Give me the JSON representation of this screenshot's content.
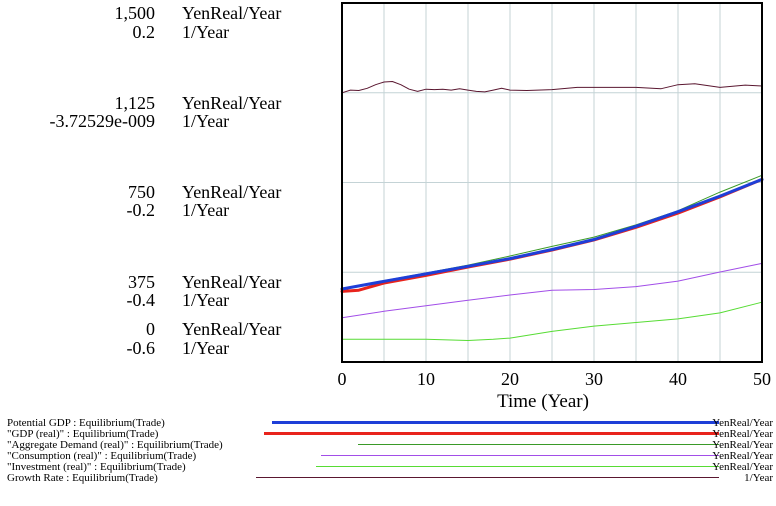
{
  "chart_data": {
    "type": "line",
    "xlabel": "Time (Year)",
    "xlim": [
      0,
      50
    ],
    "x_ticks": [
      "0",
      "10",
      "20",
      "30",
      "40",
      "50"
    ],
    "grid": true,
    "legend_position": "bottom",
    "axes": [
      {
        "unit": "YenReal/Year",
        "ylim": [
          0,
          1500
        ],
        "tick_labels": [
          "1,500",
          "1,125",
          "750",
          "375",
          "0"
        ]
      },
      {
        "unit": "1/Year",
        "ylim": [
          -0.6,
          0.2
        ],
        "tick_labels": [
          "0.2",
          "-3.72529e-009",
          "-0.2",
          "-0.4",
          "-0.6"
        ]
      }
    ],
    "series": [
      {
        "name": "Potential GDP : Equilibrium(Trade)",
        "unit": "YenReal/Year",
        "axis": 0,
        "color": "#1e3fd8",
        "width": 3,
        "x": [
          0,
          5,
          10,
          15,
          20,
          25,
          30,
          35,
          40,
          45,
          50
        ],
        "values": [
          305,
          337,
          368,
          400,
          432,
          470,
          512,
          567,
          628,
          693,
          763
        ]
      },
      {
        "name": "\"GDP (real)\" : Equilibrium(Trade)",
        "unit": "YenReal/Year",
        "axis": 0,
        "color": "#e8231c",
        "width": 3,
        "x": [
          0,
          2,
          5,
          10,
          15,
          20,
          25,
          30,
          35,
          40,
          45,
          50
        ],
        "values": [
          295,
          300,
          330,
          362,
          397,
          430,
          468,
          510,
          563,
          622,
          690,
          763
        ]
      },
      {
        "name": "\"Aggregate Demand (real)\" : Equilibrium(Trade)",
        "unit": "YenReal/Year",
        "axis": 0,
        "color": "#3a9a28",
        "width": 1,
        "x": [
          0,
          5,
          10,
          15,
          20,
          25,
          30,
          35,
          40,
          45,
          50
        ],
        "values": [
          307,
          340,
          372,
          405,
          443,
          483,
          522,
          573,
          632,
          710,
          780
        ]
      },
      {
        "name": "\"Consumption (real)\" : Equilibrium(Trade)",
        "unit": "YenReal/Year",
        "axis": 0,
        "color": "#a24ee8",
        "width": 1,
        "x": [
          0,
          5,
          10,
          15,
          20,
          25,
          30,
          35,
          40,
          45,
          50
        ],
        "values": [
          185,
          212,
          235,
          258,
          280,
          300,
          303,
          315,
          338,
          376,
          412
        ]
      },
      {
        "name": "\"Investment (real)\" : Equilibrium(Trade)",
        "unit": "YenReal/Year",
        "axis": 0,
        "color": "#57dc34",
        "width": 1,
        "x": [
          0,
          5,
          10,
          15,
          18,
          20,
          25,
          30,
          35,
          40,
          45,
          50
        ],
        "values": [
          95,
          95,
          95,
          90,
          95,
          100,
          128,
          150,
          165,
          180,
          205,
          250
        ]
      },
      {
        "name": "Growth Rate : Equilibrium(Trade)",
        "unit": "1/Year",
        "axis": 1,
        "color": "#5a1730",
        "width": 1,
        "x": [
          0,
          1,
          2,
          3,
          4,
          5,
          6,
          7,
          8,
          9,
          10,
          11,
          12,
          13,
          14,
          15,
          16,
          17,
          18,
          19,
          20,
          22,
          25,
          28,
          30,
          33,
          35,
          38,
          40,
          42,
          45,
          48,
          50
        ],
        "values": [
          0.0,
          0.006,
          0.005,
          0.01,
          0.018,
          0.024,
          0.025,
          0.018,
          0.008,
          0.003,
          0.008,
          0.007,
          0.008,
          0.006,
          0.009,
          0.006,
          0.003,
          0.002,
          0.006,
          0.01,
          0.006,
          0.005,
          0.007,
          0.012,
          0.012,
          0.012,
          0.012,
          0.009,
          0.018,
          0.02,
          0.012,
          0.017,
          0.015
        ]
      }
    ]
  }
}
